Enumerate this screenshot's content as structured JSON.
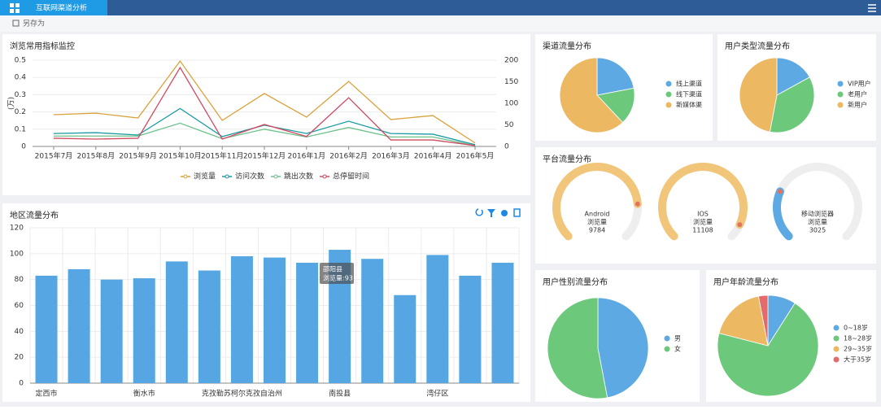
{
  "header": {
    "tab": "互联网渠道分析",
    "save": "另存为"
  },
  "chart_data": [
    {
      "type": "line",
      "title": "浏览常用指标监控",
      "ylabel": "(万)",
      "categories": [
        "2015年7月",
        "2015年8月",
        "2015年9月",
        "2015年10月",
        "2015年11月",
        "2015年12月",
        "2016年1月",
        "2016年2月",
        "2016年3月",
        "2016年4月",
        "2016年5月"
      ],
      "ylim": [
        0,
        0.5
      ],
      "yticks": [
        0,
        0.1,
        0.2,
        0.3,
        0.4,
        0.5
      ],
      "y2lim": [
        0,
        200
      ],
      "y2ticks": [
        0,
        50,
        100,
        150,
        200
      ],
      "grid": true,
      "series": [
        {
          "name": "浏览量",
          "color": "#d9a23c",
          "values": [
            0.184,
            0.193,
            0.165,
            0.495,
            0.151,
            0.307,
            0.17,
            0.377,
            0.156,
            0.179,
            0.02
          ]
        },
        {
          "name": "访问次数",
          "color": "#1a9aa3",
          "values": [
            0.075,
            0.08,
            0.066,
            0.22,
            0.057,
            0.123,
            0.075,
            0.146,
            0.075,
            0.071,
            0.01
          ]
        },
        {
          "name": "跳出次数",
          "color": "#6cc08b",
          "values": [
            0.06,
            0.06,
            0.06,
            0.135,
            0.045,
            0.1,
            0.055,
            0.11,
            0.055,
            0.055,
            0.005
          ]
        },
        {
          "name": "总停留时间",
          "color": "#d14a61",
          "axis": "y2",
          "values": [
            19,
            17,
            19,
            183,
            17,
            51,
            23,
            113,
            15,
            15,
            2
          ]
        }
      ]
    },
    {
      "type": "bar",
      "title": "地区流量分布",
      "categories": [
        "定西市",
        null,
        null,
        "衡水市",
        null,
        null,
        "克孜勒苏柯尔克孜自治州",
        null,
        null,
        "南投县",
        null,
        null,
        "湾仔区",
        null,
        null
      ],
      "values": [
        83,
        88,
        80,
        81,
        94,
        87,
        98,
        97,
        93,
        103,
        96,
        68,
        99,
        83,
        93
      ],
      "color": "#55a6e3",
      "ylim": [
        0,
        120
      ],
      "yticks": [
        0,
        20,
        40,
        60,
        80,
        100,
        120
      ],
      "grid": true,
      "tooltip": {
        "title": "邵阳县",
        "text": "浏览量:93"
      }
    },
    {
      "type": "pie",
      "title": "渠道流量分布",
      "categories": [
        "线上渠道",
        "线下渠道",
        "新媒体渠"
      ],
      "values": [
        22,
        16,
        62
      ],
      "colors": [
        "#5da9e4",
        "#6cc97c",
        "#ecb862"
      ]
    },
    {
      "type": "pie",
      "title": "用户类型流量分布",
      "categories": [
        "VIP用户",
        "老用户",
        "新用户"
      ],
      "values": [
        17,
        36,
        47
      ],
      "colors": [
        "#5da9e4",
        "#6cc97c",
        "#ecb862"
      ]
    },
    {
      "type": "gauge",
      "title": "平台流量分布",
      "max": 12000,
      "items": [
        {
          "name": "Android",
          "label": "浏览量",
          "value": 9784,
          "color": "#f1c67a"
        },
        {
          "name": "IOS",
          "label": "浏览量",
          "value": 11108,
          "color": "#f1c67a"
        },
        {
          "name": "移动浏览器",
          "label": "浏览量",
          "value": 3025,
          "color": "#5da9e4"
        }
      ]
    },
    {
      "type": "pie",
      "title": "用户性别流量分布",
      "categories": [
        "男",
        "女"
      ],
      "values": [
        47,
        53
      ],
      "colors": [
        "#5da9e4",
        "#6cc97c"
      ]
    },
    {
      "type": "pie",
      "title": "用户年龄流量分布",
      "categories": [
        "0~18岁",
        "18~28岁",
        "29~35岁",
        "大于35岁"
      ],
      "values": [
        9,
        70,
        18,
        3
      ],
      "colors": [
        "#5da9e4",
        "#6cc97c",
        "#ecb862",
        "#e36b6b"
      ]
    }
  ]
}
